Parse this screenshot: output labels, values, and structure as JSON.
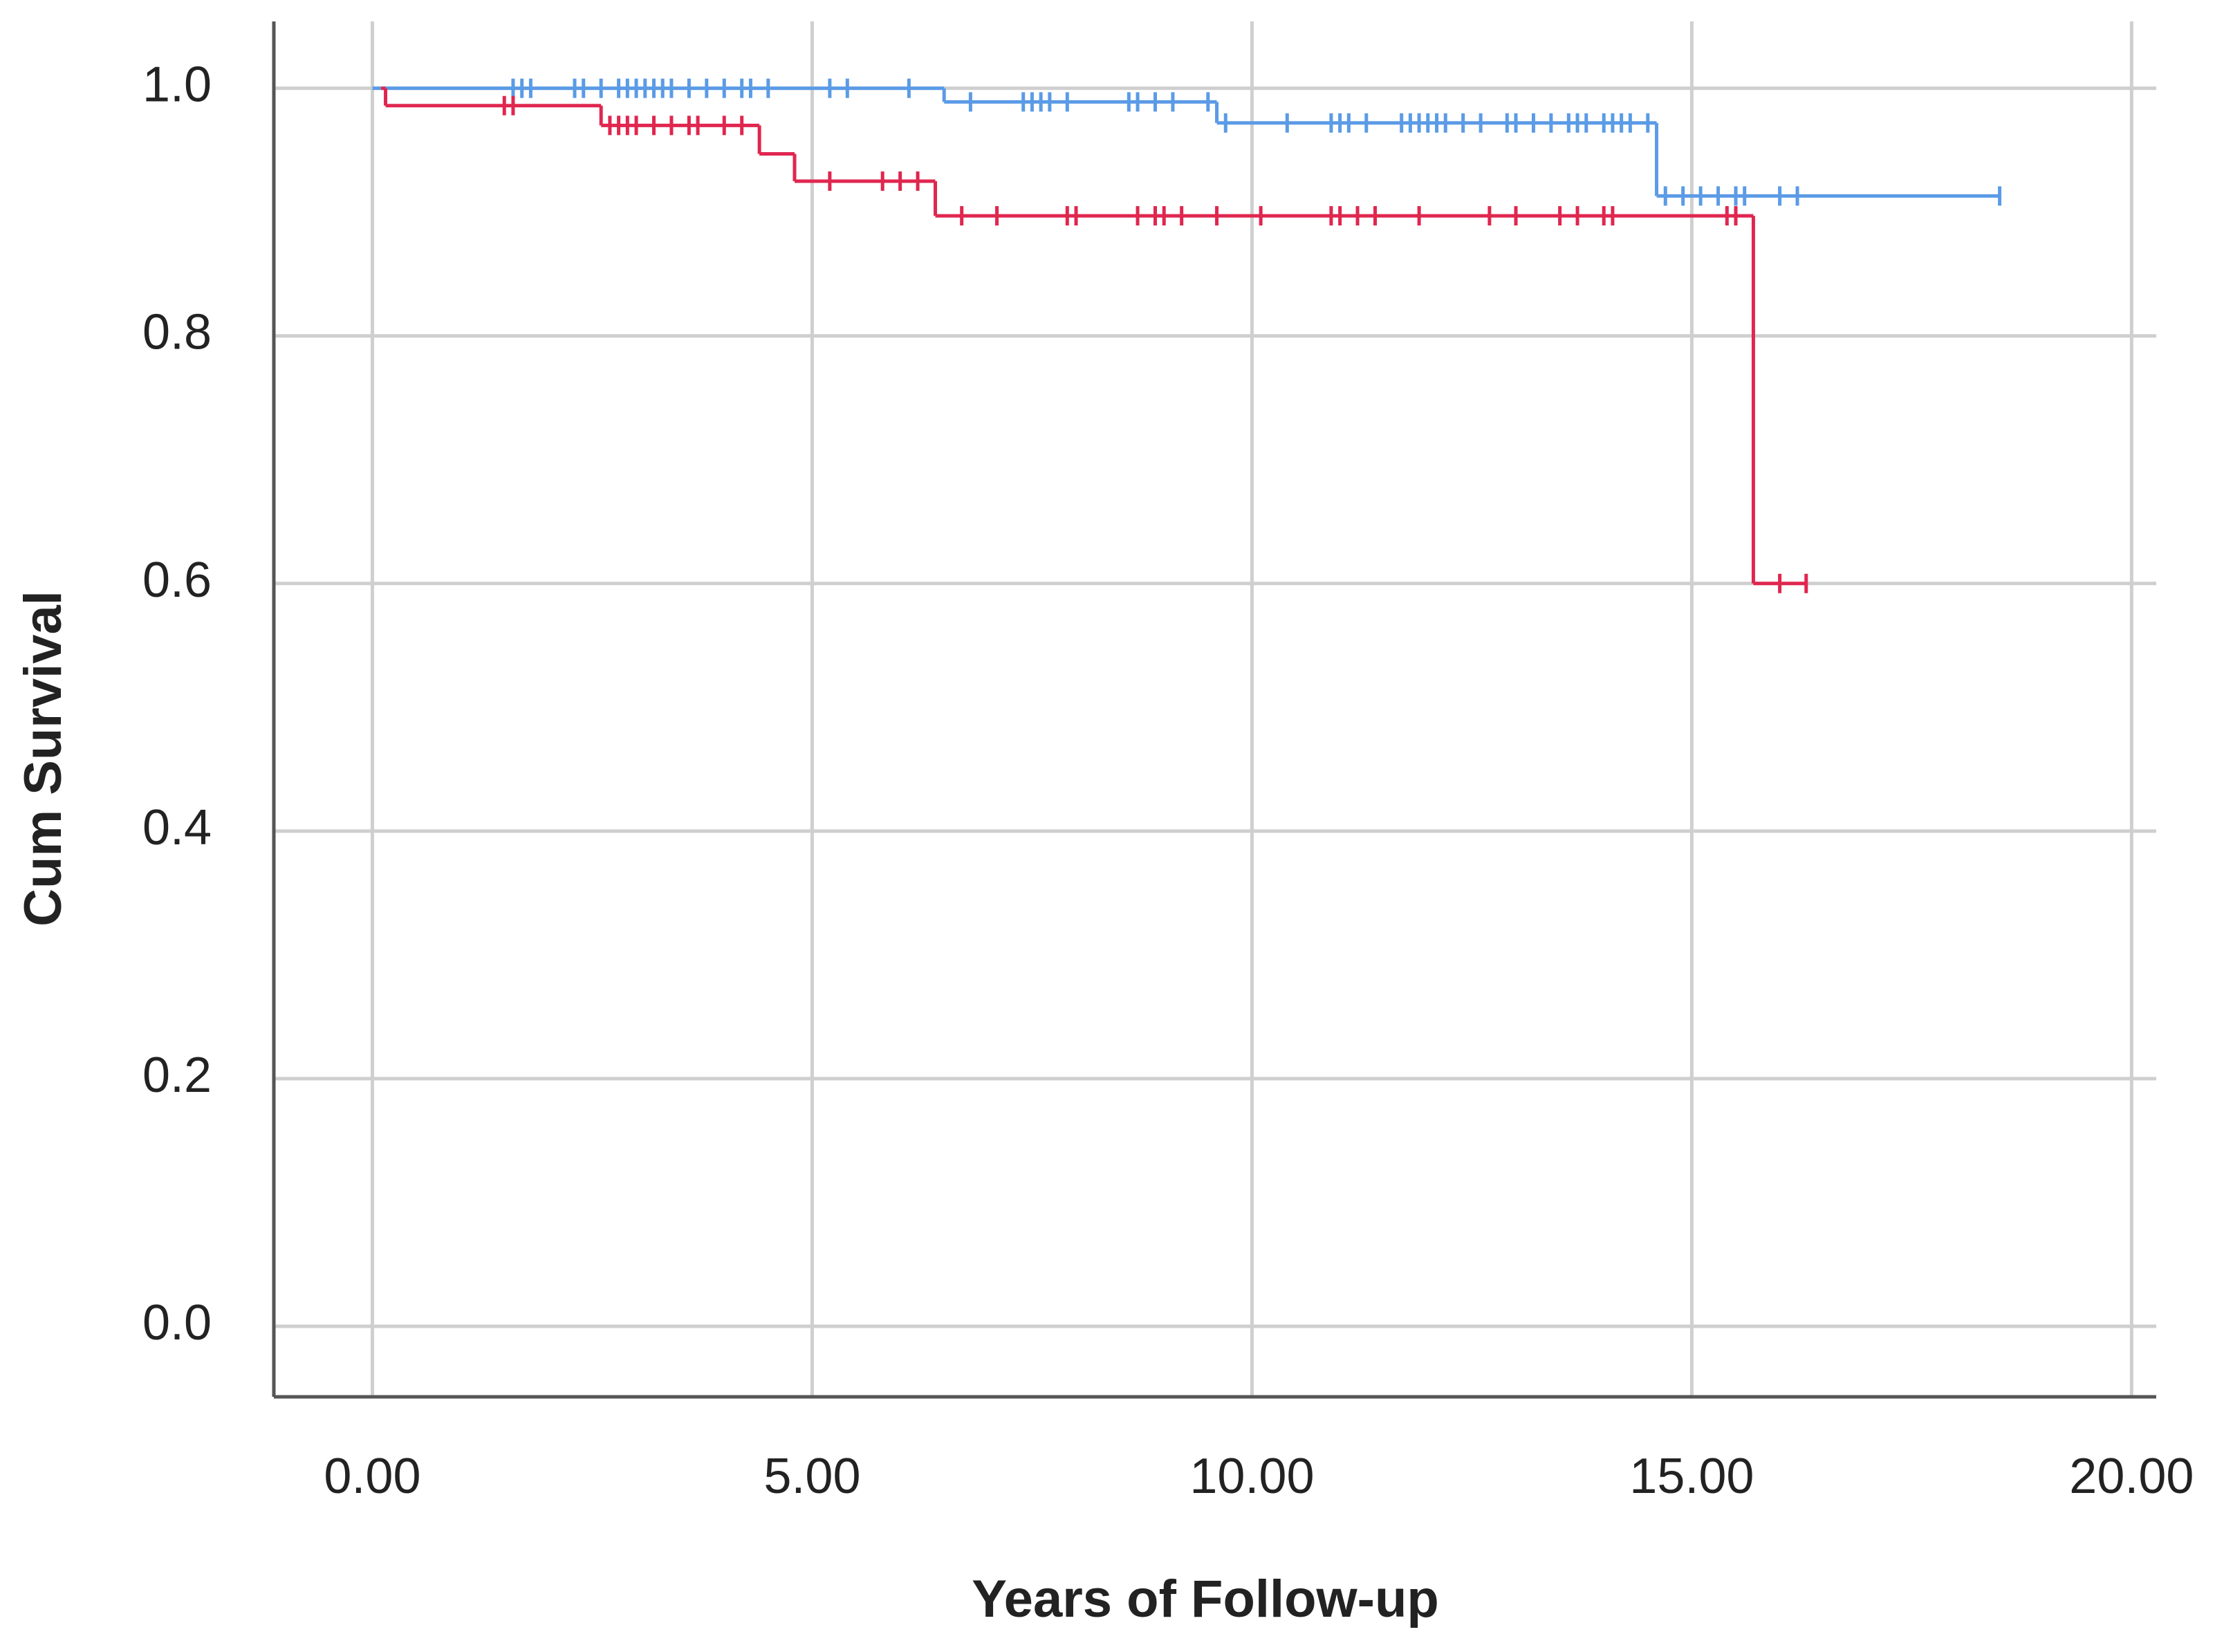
{
  "chart_data": {
    "type": "km",
    "x_label": "Years of Follow-up",
    "y_label": "Cum Survival",
    "xlim": [
      -1.12,
      20.28
    ],
    "ylim": [
      -0.057,
      1.054
    ],
    "xticks": [
      {
        "value": 0,
        "label": "0.00"
      },
      {
        "value": 5,
        "label": "5.00"
      },
      {
        "value": 10,
        "label": "10.00"
      },
      {
        "value": 15,
        "label": "15.00"
      },
      {
        "value": 20,
        "label": "20.00"
      }
    ],
    "yticks": [
      {
        "value": 0,
        "label": "0.0"
      },
      0.2,
      0.4,
      0.6,
      0.8,
      {
        "value": 1,
        "label": "1.0"
      }
    ],
    "grid": true,
    "series": [
      {
        "color": "#5b9be6",
        "x": [
          0,
          6.5,
          9.6,
          14.6,
          18.5
        ],
        "values": [
          1,
          0.989,
          0.972,
          0.913,
          0.913
        ]
      },
      {
        "color": "#e0264f",
        "x": [
          0.1,
          0.15,
          2.6,
          4.4,
          4.8,
          6.4,
          15.7,
          16.3
        ],
        "values": [
          1,
          0.986,
          0.97,
          0.947,
          0.925,
          0.897,
          0.6,
          0.6
        ]
      }
    ],
    "censored": [
      {
        "color": "#5b9be6",
        "x": [
          1.6,
          1.7,
          1.8,
          2.3,
          2.4,
          2.6,
          2.8,
          2.9,
          3.0,
          3.1,
          3.2,
          3.3,
          3.4,
          3.6,
          3.8,
          4.0,
          4.2,
          4.3,
          4.5,
          5.2,
          5.4,
          6.1,
          6.8,
          7.4,
          7.5,
          7.6,
          7.7,
          7.9,
          8.6,
          8.7,
          8.9,
          9.1,
          9.5,
          9.7,
          10.4,
          10.9,
          11.0,
          11.1,
          11.3,
          11.7,
          11.8,
          11.9,
          12.0,
          12.1,
          12.2,
          12.4,
          12.6,
          12.9,
          13.0,
          13.2,
          13.4,
          13.6,
          13.7,
          13.8,
          14.0,
          14.1,
          14.2,
          14.3,
          14.5,
          14.7,
          14.9,
          15.1,
          15.3,
          15.5,
          15.6,
          16.0,
          16.2,
          18.5
        ],
        "values": [
          1,
          1,
          1,
          1,
          1,
          1,
          1,
          1,
          1,
          1,
          1,
          1,
          1,
          1,
          1,
          1,
          1,
          1,
          1,
          1,
          1,
          1,
          0.989,
          0.989,
          0.989,
          0.989,
          0.989,
          0.989,
          0.989,
          0.989,
          0.989,
          0.989,
          0.989,
          0.972,
          0.972,
          0.972,
          0.972,
          0.972,
          0.972,
          0.972,
          0.972,
          0.972,
          0.972,
          0.972,
          0.972,
          0.972,
          0.972,
          0.972,
          0.972,
          0.972,
          0.972,
          0.972,
          0.972,
          0.972,
          0.972,
          0.972,
          0.972,
          0.972,
          0.972,
          0.913,
          0.913,
          0.913,
          0.913,
          0.913,
          0.913,
          0.913,
          0.913,
          0.913
        ]
      },
      {
        "color": "#e0264f",
        "x": [
          1.5,
          1.6,
          2.7,
          2.8,
          2.9,
          3.0,
          3.2,
          3.4,
          3.6,
          3.7,
          4.0,
          4.2,
          5.2,
          5.8,
          6.0,
          6.2,
          6.7,
          7.1,
          7.9,
          8.0,
          8.7,
          8.9,
          9.0,
          9.2,
          9.6,
          10.1,
          10.9,
          11.0,
          11.2,
          11.4,
          11.9,
          12.7,
          13.0,
          13.5,
          13.7,
          14.0,
          14.1,
          15.4,
          15.5,
          16.0,
          16.3
        ],
        "values": [
          0.986,
          0.986,
          0.97,
          0.97,
          0.97,
          0.97,
          0.97,
          0.97,
          0.97,
          0.97,
          0.97,
          0.97,
          0.925,
          0.925,
          0.925,
          0.925,
          0.897,
          0.897,
          0.897,
          0.897,
          0.897,
          0.897,
          0.897,
          0.897,
          0.897,
          0.897,
          0.897,
          0.897,
          0.897,
          0.897,
          0.897,
          0.897,
          0.897,
          0.897,
          0.897,
          0.897,
          0.897,
          0.897,
          0.897,
          0.6,
          0.6
        ]
      }
    ]
  }
}
